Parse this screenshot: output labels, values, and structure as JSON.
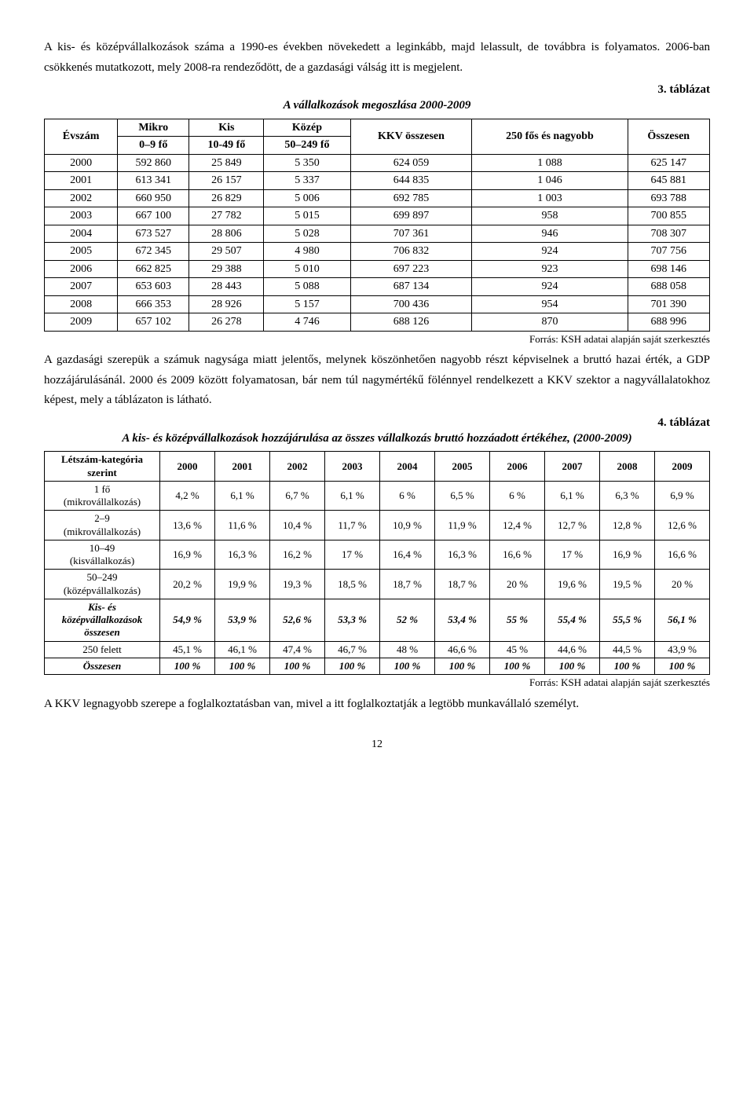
{
  "para1": "A kis- és középvállalkozások száma a 1990-es években növekedett a leginkább, majd lelassult, de továbbra is folyamatos. 2006-ban csökkenés mutatkozott, mely 2008-ra rendeződött, de a gazdasági válság itt is megjelent.",
  "t1_label": "3. táblázat",
  "t1_title": "A vállalkozások megoszlása 2000-2009",
  "t1_header_row1": [
    "Évszám",
    "Mikro",
    "Kis",
    "Közép",
    "KKV összesen",
    "250 fős és nagyobb",
    "Összesen"
  ],
  "t1_header_row2": [
    "0–9 fő",
    "10-49 fő",
    "50–249 fő"
  ],
  "t1_rows": [
    [
      "2000",
      "592 860",
      "25 849",
      "5 350",
      "624 059",
      "1 088",
      "625 147"
    ],
    [
      "2001",
      "613 341",
      "26 157",
      "5 337",
      "644 835",
      "1 046",
      "645 881"
    ],
    [
      "2002",
      "660 950",
      "26 829",
      "5 006",
      "692 785",
      "1 003",
      "693 788"
    ],
    [
      "2003",
      "667 100",
      "27 782",
      "5 015",
      "699 897",
      "958",
      "700 855"
    ],
    [
      "2004",
      "673 527",
      "28 806",
      "5 028",
      "707 361",
      "946",
      "708 307"
    ],
    [
      "2005",
      "672 345",
      "29 507",
      "4 980",
      "706 832",
      "924",
      "707 756"
    ],
    [
      "2006",
      "662 825",
      "29 388",
      "5 010",
      "697 223",
      "923",
      "698 146"
    ],
    [
      "2007",
      "653 603",
      "28 443",
      "5 088",
      "687 134",
      "924",
      "688 058"
    ],
    [
      "2008",
      "666 353",
      "28 926",
      "5 157",
      "700 436",
      "954",
      "701 390"
    ],
    [
      "2009",
      "657 102",
      "26 278",
      "4 746",
      "688 126",
      "870",
      "688 996"
    ]
  ],
  "t1_source": "Forrás: KSH adatai alapján saját szerkesztés",
  "para2": "A gazdasági szerepük a számuk nagysága miatt jelentős, melynek köszönhetően nagyobb részt képviselnek a bruttó hazai érték, a GDP hozzájárulásánál. 2000 és 2009 között folyamatosan, bár nem túl nagymértékű fölénnyel rendelkezett a KKV szektor a nagyvállalatokhoz képest, mely a táblázaton is látható.",
  "t2_label": "4. táblázat",
  "t2_title": "A kis- és középvállalkozások hozzájárulása az összes vállalkozás bruttó hozzáadott értékéhez, (2000-2009)",
  "t2_head": [
    "Létszám-kategória szerint",
    "2000",
    "2001",
    "2002",
    "2003",
    "2004",
    "2005",
    "2006",
    "2007",
    "2008",
    "2009"
  ],
  "t2_rows": [
    {
      "label": "1 fő\n(mikrovállalkozás)",
      "cells": [
        "4,2 %",
        "6,1 %",
        "6,7 %",
        "6,1 %",
        "6 %",
        "6,5 %",
        "6 %",
        "6,1 %",
        "6,3 %",
        "6,9 %"
      ],
      "bold": false,
      "italic": false
    },
    {
      "label": "2–9\n(mikrovállalkozás)",
      "cells": [
        "13,6 %",
        "11,6 %",
        "10,4 %",
        "11,7 %",
        "10,9 %",
        "11,9 %",
        "12,4 %",
        "12,7 %",
        "12,8 %",
        "12,6 %"
      ],
      "bold": false,
      "italic": false
    },
    {
      "label": "10–49\n(kisvállalkozás)",
      "cells": [
        "16,9 %",
        "16,3 %",
        "16,2 %",
        "17 %",
        "16,4 %",
        "16,3 %",
        "16,6 %",
        "17 %",
        "16,9 %",
        "16,6 %"
      ],
      "bold": false,
      "italic": false
    },
    {
      "label": "50–249\n(középvállalkozás)",
      "cells": [
        "20,2 %",
        "19,9 %",
        "19,3 %",
        "18,5 %",
        "18,7 %",
        "18,7 %",
        "20 %",
        "19,6 %",
        "19,5 %",
        "20 %"
      ],
      "bold": false,
      "italic": false
    },
    {
      "label": "Kis- és középvállalkozások összesen",
      "cells": [
        "54,9 %",
        "53,9 %",
        "52,6 %",
        "53,3 %",
        "52 %",
        "53,4 %",
        "55 %",
        "55,4 %",
        "55,5 %",
        "56,1 %"
      ],
      "bold": true,
      "italic": true
    },
    {
      "label": "250 felett",
      "cells": [
        "45,1 %",
        "46,1 %",
        "47,4 %",
        "46,7 %",
        "48 %",
        "46,6 %",
        "45 %",
        "44,6 %",
        "44,5 %",
        "43,9 %"
      ],
      "bold": false,
      "italic": false
    },
    {
      "label": "Összesen",
      "cells": [
        "100 %",
        "100 %",
        "100 %",
        "100 %",
        "100 %",
        "100 %",
        "100 %",
        "100 %",
        "100 %",
        "100 %"
      ],
      "bold": true,
      "italic": true
    }
  ],
  "t2_source": "Forrás: KSH adatai alapján saját szerkesztés",
  "para3": "A KKV legnagyobb szerepe a foglalkoztatásban van, mivel a itt foglalkoztatják a legtöbb munkavállaló személyt.",
  "pagenum": "12"
}
